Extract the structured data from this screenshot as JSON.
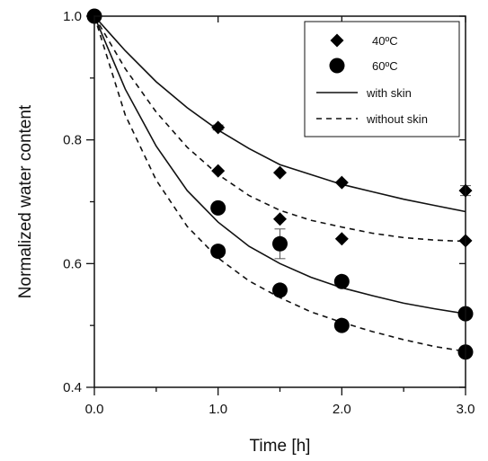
{
  "chart_data": {
    "type": "scatter",
    "xlabel": "Time [h]",
    "ylabel": "Normalized water content",
    "xlim": [
      0,
      3
    ],
    "ylim": [
      0.4,
      1.0
    ],
    "x_ticks": [
      {
        "value": 0,
        "label": "0.0"
      },
      {
        "value": 1,
        "label": "1.0"
      },
      {
        "value": 2,
        "label": "2.0"
      },
      {
        "value": 3,
        "label": "3.0"
      }
    ],
    "y_ticks": [
      {
        "value": 0.4,
        "label": "0.4"
      },
      {
        "value": 0.6,
        "label": "0.6"
      },
      {
        "value": 0.8,
        "label": "0.8"
      },
      {
        "value": 1.0,
        "label": "1.0"
      }
    ],
    "x_minor_ticks": [
      0.5,
      1.5,
      2.5
    ],
    "y_minor_ticks": [
      0.5,
      0.7,
      0.9
    ],
    "grid": false,
    "legend_position": "top-right",
    "legend": [
      {
        "label": "40ºC",
        "kind": "diamond"
      },
      {
        "label": "60ºC",
        "kind": "circle"
      },
      {
        "label": "with skin",
        "kind": "solid"
      },
      {
        "label": "without skin",
        "kind": "dashed"
      }
    ],
    "series": [
      {
        "name": "40ºC",
        "marker": "diamond",
        "points": [
          {
            "x": 0,
            "y": 1.0
          },
          {
            "x": 1,
            "y": 0.82,
            "err": 0.004
          },
          {
            "x": 1,
            "y": 0.75
          },
          {
            "x": 1.5,
            "y": 0.747
          },
          {
            "x": 1.5,
            "y": 0.672
          },
          {
            "x": 2,
            "y": 0.731
          },
          {
            "x": 2,
            "y": 0.64
          },
          {
            "x": 3,
            "y": 0.718,
            "err": 0.008
          },
          {
            "x": 3,
            "y": 0.637
          }
        ]
      },
      {
        "name": "60ºC",
        "marker": "circle",
        "points": [
          {
            "x": 0,
            "y": 1.0
          },
          {
            "x": 1,
            "y": 0.69
          },
          {
            "x": 1,
            "y": 0.62
          },
          {
            "x": 1.5,
            "y": 0.632,
            "err": 0.024
          },
          {
            "x": 1.5,
            "y": 0.557,
            "err": 0.005
          },
          {
            "x": 2,
            "y": 0.571
          },
          {
            "x": 2,
            "y": 0.5
          },
          {
            "x": 3,
            "y": 0.519
          },
          {
            "x": 3,
            "y": 0.457
          }
        ]
      }
    ],
    "curves": [
      {
        "temperature": "40ºC",
        "model": "with skin",
        "style": "solid",
        "points": [
          {
            "x": 0,
            "y": 1.0
          },
          {
            "x": 0.25,
            "y": 0.944
          },
          {
            "x": 0.5,
            "y": 0.894
          },
          {
            "x": 0.75,
            "y": 0.852
          },
          {
            "x": 1.0,
            "y": 0.816
          },
          {
            "x": 1.25,
            "y": 0.786
          },
          {
            "x": 1.5,
            "y": 0.76
          },
          {
            "x": 1.75,
            "y": 0.744
          },
          {
            "x": 2.0,
            "y": 0.728
          },
          {
            "x": 2.25,
            "y": 0.716
          },
          {
            "x": 2.5,
            "y": 0.704
          },
          {
            "x": 2.75,
            "y": 0.694
          },
          {
            "x": 3.0,
            "y": 0.684
          }
        ]
      },
      {
        "temperature": "40ºC",
        "model": "without skin",
        "style": "dashed",
        "points": [
          {
            "x": 0,
            "y": 1.0
          },
          {
            "x": 0.25,
            "y": 0.915
          },
          {
            "x": 0.5,
            "y": 0.845
          },
          {
            "x": 0.75,
            "y": 0.788
          },
          {
            "x": 1.0,
            "y": 0.744
          },
          {
            "x": 1.25,
            "y": 0.71
          },
          {
            "x": 1.5,
            "y": 0.686
          },
          {
            "x": 1.75,
            "y": 0.67
          },
          {
            "x": 2.0,
            "y": 0.659
          },
          {
            "x": 2.25,
            "y": 0.649
          },
          {
            "x": 2.5,
            "y": 0.642
          },
          {
            "x": 2.75,
            "y": 0.638
          },
          {
            "x": 3.0,
            "y": 0.636
          }
        ]
      },
      {
        "temperature": "60ºC",
        "model": "with skin",
        "style": "solid",
        "points": [
          {
            "x": 0,
            "y": 1.0
          },
          {
            "x": 0.25,
            "y": 0.882
          },
          {
            "x": 0.5,
            "y": 0.79
          },
          {
            "x": 0.75,
            "y": 0.718
          },
          {
            "x": 1.0,
            "y": 0.667
          },
          {
            "x": 1.25,
            "y": 0.628
          },
          {
            "x": 1.5,
            "y": 0.6
          },
          {
            "x": 1.75,
            "y": 0.578
          },
          {
            "x": 2.0,
            "y": 0.561
          },
          {
            "x": 2.25,
            "y": 0.548
          },
          {
            "x": 2.5,
            "y": 0.536
          },
          {
            "x": 2.75,
            "y": 0.527
          },
          {
            "x": 3.0,
            "y": 0.519
          }
        ]
      },
      {
        "temperature": "60ºC",
        "model": "without skin",
        "style": "dashed",
        "points": [
          {
            "x": 0,
            "y": 1.0
          },
          {
            "x": 0.25,
            "y": 0.84
          },
          {
            "x": 0.5,
            "y": 0.735
          },
          {
            "x": 0.75,
            "y": 0.66
          },
          {
            "x": 1.0,
            "y": 0.609
          },
          {
            "x": 1.25,
            "y": 0.572
          },
          {
            "x": 1.5,
            "y": 0.545
          },
          {
            "x": 1.75,
            "y": 0.522
          },
          {
            "x": 2.0,
            "y": 0.505
          },
          {
            "x": 2.25,
            "y": 0.49
          },
          {
            "x": 2.5,
            "y": 0.477
          },
          {
            "x": 2.75,
            "y": 0.466
          },
          {
            "x": 3.0,
            "y": 0.458
          }
        ]
      }
    ]
  }
}
